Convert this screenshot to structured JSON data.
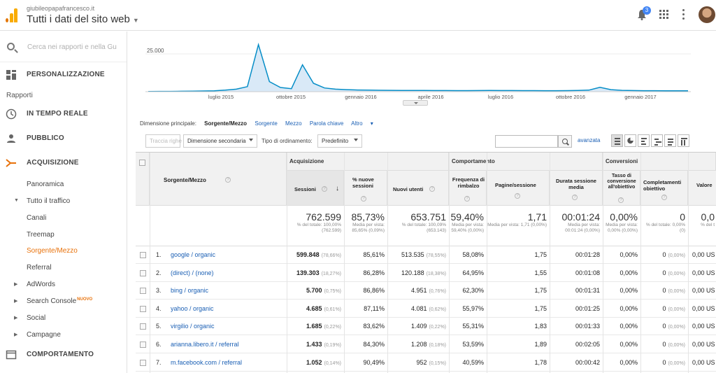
{
  "header": {
    "site": "giubileopapafrancesco.it",
    "account": "Tutti i dati del sito web",
    "notifications": "3"
  },
  "sidebar": {
    "search_placeholder": "Cerca nei rapporti e nella Gu",
    "personalize": "PERSONALIZZAZIONE",
    "reports_heading": "Rapporti",
    "realtime": "IN TEMPO REALE",
    "audience": "PUBBLICO",
    "acquisition": "ACQUISIZIONE",
    "overview": "Panoramica",
    "all_traffic": "Tutto il traffico",
    "channels": "Canali",
    "treemap": "Treemap",
    "source_medium": "Sorgente/Mezzo",
    "referral": "Referral",
    "adwords": "AdWords",
    "search_console": "Search Console",
    "new_badge": "NUOVO",
    "social": "Social",
    "campaigns": "Campagne",
    "behavior": "COMPORTAMENTO"
  },
  "chart_data": {
    "type": "line",
    "y_tick": "25.000",
    "x_ticks": [
      "luglio 2015",
      "ottobre 2015",
      "gennaio 2016",
      "aprile 2016",
      "luglio 2016",
      "ottobre 2016",
      "gennaio 2017"
    ],
    "series": [
      {
        "values": [
          120,
          150,
          180,
          260,
          300,
          400,
          550,
          900,
          1500,
          3000,
          28000,
          6000,
          2500,
          1800,
          16000,
          5000,
          2200,
          1500,
          1200,
          1000,
          900,
          850,
          800,
          750,
          720,
          700,
          680,
          650,
          640,
          630,
          650,
          700,
          680,
          650,
          640,
          620,
          600,
          600,
          640,
          700,
          900,
          2600,
          1200,
          800,
          650,
          600,
          580,
          560,
          550,
          540
        ]
      }
    ],
    "ylim": [
      0,
      30000
    ]
  },
  "dimension": {
    "label": "Dimensione principale:",
    "current": "Sorgente/Mezzo",
    "links": [
      "Sorgente",
      "Mezzo",
      "Parola chiave"
    ],
    "other": "Altro"
  },
  "toolbar": {
    "plot_rows": "Traccia righe",
    "secondary": "Dimensione secondaria",
    "sort_label": "Tipo di ordinamento:",
    "sort_value": "Predefinito",
    "advanced": "avanzata"
  },
  "table": {
    "group_acq": "Acquisizione",
    "group_beh": "Comportamento",
    "group_conv": "Conversioni",
    "col_dim": "Sorgente/Mezzo",
    "col_sessions": "Sessioni",
    "col_new_pct": "% nuove sessioni",
    "col_new_users": "Nuovi utenti",
    "col_bounce": "Frequenza di rimbalzo",
    "col_pages": "Pagine/sessione",
    "col_duration": "Durata sessione media",
    "col_conv_rate": "Tasso di conversione all'obiettivo",
    "col_completions": "Completamenti obiettivo",
    "col_value": "Valore",
    "totals": {
      "sessions": "762.599",
      "sessions_sub": "% del totale: 100,00% (762.599)",
      "new_pct": "85,73%",
      "new_pct_sub": "Media per vista: 85,65% (0,09%)",
      "new_users": "653.751",
      "new_users_sub": "% del totale: 100,09% (653.143)",
      "bounce": "59,40%",
      "bounce_sub": "Media per vista: 59,40% (0,00%)",
      "pages": "1,71",
      "pages_sub": "Media per vista: 1,71 (0,00%)",
      "duration": "00:01:24",
      "duration_sub": "Media per vista: 00:01:24 (0,00%)",
      "conv": "0,00%",
      "conv_sub": "Media per vista: 0,00% (0,00%)",
      "completions": "0",
      "completions_sub": "% del totale: 0,00% (0)",
      "value": "0,0",
      "value_sub": "% del t"
    },
    "rows": [
      {
        "n": "1.",
        "src": "google / organic",
        "s": "599.848",
        "sp": "(78,66%)",
        "np": "85,61%",
        "nu": "513.535",
        "nup": "(78,55%)",
        "b": "58,08%",
        "pg": "1,75",
        "d": "00:01:28",
        "c": "0,00%",
        "cm": "0",
        "cmp": "(0,00%)",
        "v": "0,00 US"
      },
      {
        "n": "2.",
        "src": "(direct) / (none)",
        "s": "139.303",
        "sp": "(18,27%)",
        "np": "86,28%",
        "nu": "120.188",
        "nup": "(18,38%)",
        "b": "64,95%",
        "pg": "1,55",
        "d": "00:01:08",
        "c": "0,00%",
        "cm": "0",
        "cmp": "(0,00%)",
        "v": "0,00 US"
      },
      {
        "n": "3.",
        "src": "bing / organic",
        "s": "5.700",
        "sp": "(0,75%)",
        "np": "86,86%",
        "nu": "4.951",
        "nup": "(0,76%)",
        "b": "62,30%",
        "pg": "1,75",
        "d": "00:01:31",
        "c": "0,00%",
        "cm": "0",
        "cmp": "(0,00%)",
        "v": "0,00 US"
      },
      {
        "n": "4.",
        "src": "yahoo / organic",
        "s": "4.685",
        "sp": "(0,61%)",
        "np": "87,11%",
        "nu": "4.081",
        "nup": "(0,62%)",
        "b": "55,97%",
        "pg": "1,75",
        "d": "00:01:25",
        "c": "0,00%",
        "cm": "0",
        "cmp": "(0,00%)",
        "v": "0,00 US"
      },
      {
        "n": "5.",
        "src": "virgilio / organic",
        "s": "1.685",
        "sp": "(0,22%)",
        "np": "83,62%",
        "nu": "1.409",
        "nup": "(0,22%)",
        "b": "55,31%",
        "pg": "1,83",
        "d": "00:01:33",
        "c": "0,00%",
        "cm": "0",
        "cmp": "(0,00%)",
        "v": "0,00 US"
      },
      {
        "n": "6.",
        "src": "arianna.libero.it / referral",
        "s": "1.433",
        "sp": "(0,19%)",
        "np": "84,30%",
        "nu": "1.208",
        "nup": "(0,18%)",
        "b": "53,59%",
        "pg": "1,89",
        "d": "00:02:05",
        "c": "0,00%",
        "cm": "0",
        "cmp": "(0,00%)",
        "v": "0,00 US"
      },
      {
        "n": "7.",
        "src": "m.facebook.com / referral",
        "s": "1.052",
        "sp": "(0,14%)",
        "np": "90,49%",
        "nu": "952",
        "nup": "(0,15%)",
        "b": "40,59%",
        "pg": "1,78",
        "d": "00:00:42",
        "c": "0,00%",
        "cm": "0",
        "cmp": "(0,00%)",
        "v": "0,00 US"
      }
    ]
  }
}
